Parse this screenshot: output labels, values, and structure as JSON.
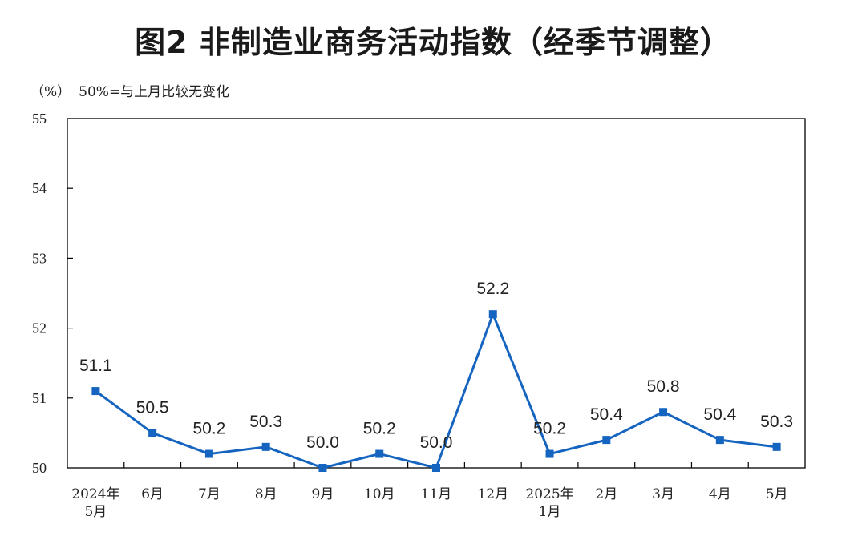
{
  "title": "图2  非制造业商务活动指数（经季节调整）",
  "unit_label": "（%）",
  "reference_note": "50%=与上月比较无变化",
  "colors": {
    "line": "#1565c0",
    "marker": "#1565c0",
    "axis": "#000000"
  },
  "chart_data": {
    "type": "line",
    "categories": [
      [
        "2024年",
        "5月"
      ],
      [
        "6月"
      ],
      [
        "7月"
      ],
      [
        "8月"
      ],
      [
        "9月"
      ],
      [
        "10月"
      ],
      [
        "11月"
      ],
      [
        "12月"
      ],
      [
        "2025年",
        "1月"
      ],
      [
        "2月"
      ],
      [
        "3月"
      ],
      [
        "4月"
      ],
      [
        "5月"
      ]
    ],
    "series": [
      {
        "values": [
          51.1,
          50.5,
          50.2,
          50.3,
          50.0,
          50.2,
          50.0,
          52.2,
          50.2,
          50.4,
          50.8,
          50.4,
          50.3
        ]
      }
    ],
    "data_labels": [
      "51.1",
      "50.5",
      "50.2",
      "50.3",
      "50.0",
      "50.2",
      "50.0",
      "52.2",
      "50.2",
      "50.4",
      "50.8",
      "50.4",
      "50.3"
    ],
    "ylim": [
      50,
      55
    ],
    "yticks": [
      "50",
      "51",
      "52",
      "53",
      "54",
      "55"
    ],
    "grid": false,
    "marker": "square"
  }
}
